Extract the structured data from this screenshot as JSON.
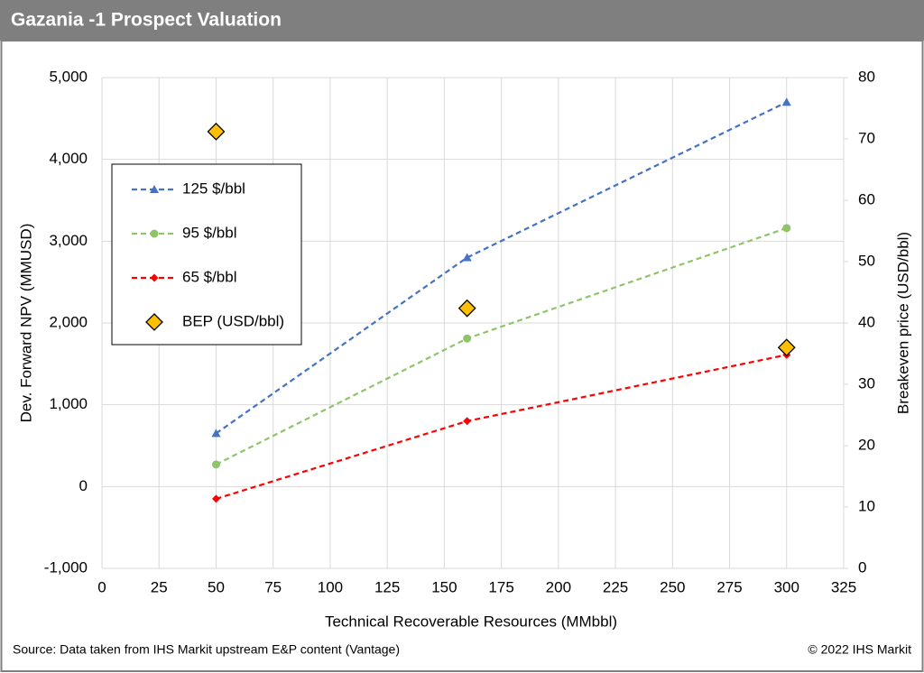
{
  "chart_data": {
    "type": "line",
    "title": "Gazania -1 Prospect Valuation",
    "source": "Source: Data taken from IHS Markit upstream E&P content (Vantage)",
    "copyright": "© 2022 IHS Markit",
    "x_label": "Technical Recoverable Resources (MMbbl)",
    "y_label": "Dev. Forward NPV (MMUSD)",
    "y2_label": "Breakeven price (USD/bbl)",
    "x": [
      50,
      160,
      300
    ],
    "series": [
      {
        "name": "125 $/bbl",
        "color": "#4472c4",
        "marker": "triangle",
        "linestyle": "dashed",
        "values": [
          650,
          2800,
          4700
        ]
      },
      {
        "name": "95 $/bbl",
        "color": "#8fc46b",
        "marker": "circle",
        "linestyle": "dashed",
        "values": [
          270,
          1810,
          3160
        ]
      },
      {
        "name": "65 $/bbl",
        "color": "#ff0000",
        "marker": "diamond",
        "linestyle": "dashed",
        "values": [
          -150,
          800,
          1610
        ]
      },
      {
        "name": "BEP (USD/bbl)",
        "color": "#ffc000",
        "marker": "diamond",
        "linestyle": "none",
        "axis": "y2",
        "values": [
          71.2,
          42.4,
          36.0
        ]
      }
    ],
    "xlim": [
      0,
      325
    ],
    "xticks": [
      0,
      25,
      50,
      75,
      100,
      125,
      150,
      175,
      200,
      225,
      250,
      275,
      300,
      325
    ],
    "ylim": [
      -1000,
      5000
    ],
    "yticks": [
      {
        "value": -1000,
        "label": "-1,000"
      },
      0,
      {
        "value": 1000,
        "label": "1,000"
      },
      {
        "value": 2000,
        "label": "2,000"
      },
      {
        "value": 3000,
        "label": "3,000"
      },
      {
        "value": 4000,
        "label": "4,000"
      },
      {
        "value": 5000,
        "label": "5,000"
      }
    ],
    "y2lim": [
      0,
      80
    ],
    "y2ticks": [
      0,
      10,
      20,
      30,
      40,
      50,
      60,
      70,
      80
    ],
    "grid": true,
    "legend": "upper left"
  }
}
